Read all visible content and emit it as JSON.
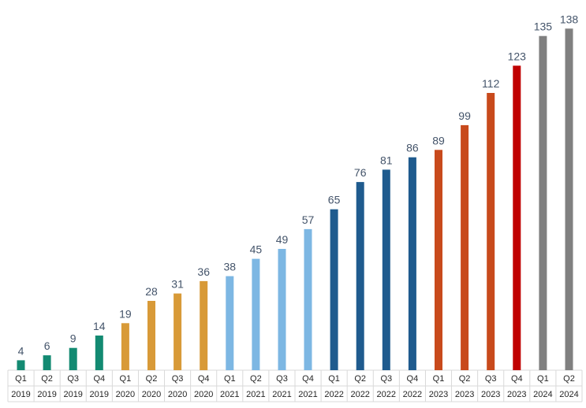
{
  "chart_data": {
    "type": "bar",
    "title": "",
    "xlabel": "",
    "ylabel": "",
    "ylim": [
      0,
      140
    ],
    "grid": false,
    "legend": "none",
    "categories": [
      [
        "Q1",
        "2019"
      ],
      [
        "Q2",
        "2019"
      ],
      [
        "Q3",
        "2019"
      ],
      [
        "Q4",
        "2019"
      ],
      [
        "Q1",
        "2020"
      ],
      [
        "Q2",
        "2020"
      ],
      [
        "Q3",
        "2020"
      ],
      [
        "Q4",
        "2020"
      ],
      [
        "Q1",
        "2021"
      ],
      [
        "Q2",
        "2021"
      ],
      [
        "Q3",
        "2021"
      ],
      [
        "Q4",
        "2021"
      ],
      [
        "Q1",
        "2022"
      ],
      [
        "Q2",
        "2022"
      ],
      [
        "Q3",
        "2022"
      ],
      [
        "Q4",
        "2022"
      ],
      [
        "Q1",
        "2023"
      ],
      [
        "Q2",
        "2023"
      ],
      [
        "Q3",
        "2023"
      ],
      [
        "Q4",
        "2023"
      ],
      [
        "Q1",
        "2024"
      ],
      [
        "Q2",
        "2024"
      ]
    ],
    "values": [
      4,
      6,
      9,
      14,
      19,
      28,
      31,
      36,
      38,
      45,
      49,
      57,
      65,
      76,
      81,
      86,
      89,
      99,
      112,
      123,
      135,
      138
    ],
    "colors": [
      "#138a72",
      "#138a72",
      "#138a72",
      "#138a72",
      "#d89a38",
      "#d89a38",
      "#d89a38",
      "#d89a38",
      "#7db7e3",
      "#7db7e3",
      "#7db7e3",
      "#7db7e3",
      "#1f5b8e",
      "#1f5b8e",
      "#1f5b8e",
      "#1f5b8e",
      "#c84a1c",
      "#c84a1c",
      "#c84a1c",
      "#c00000",
      "#808080",
      "#808080"
    ]
  }
}
